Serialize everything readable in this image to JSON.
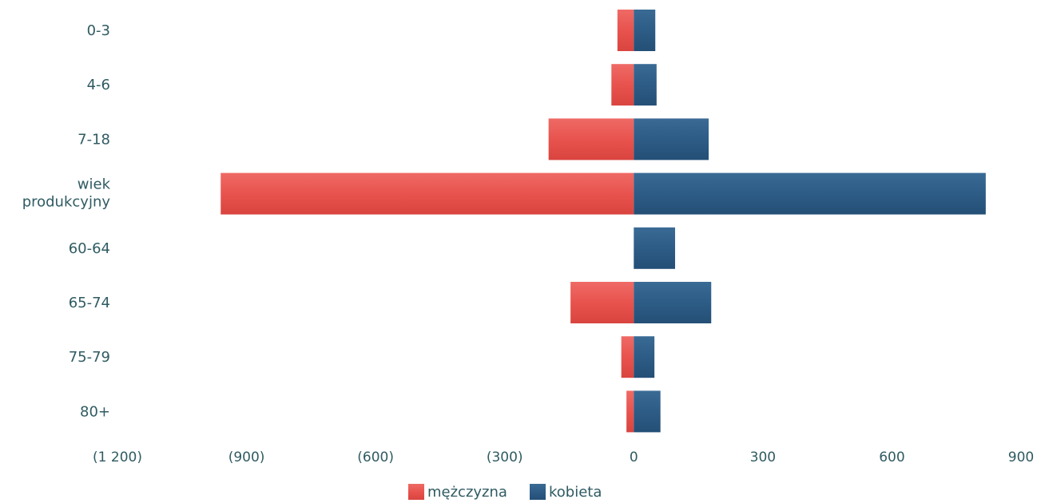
{
  "chart_data": {
    "type": "bar",
    "orientation": "horizontal",
    "stacking": "diverging",
    "categories": [
      "0-3",
      "4-6",
      "7-18",
      "wiek produkcyjny",
      "60-64",
      "65-74",
      "75-79",
      "80+"
    ],
    "series": [
      {
        "name": "mężczyzna",
        "color": "#e8534e",
        "values": [
          -38,
          -52,
          -198,
          -960,
          0,
          -147,
          -29,
          -17
        ]
      },
      {
        "name": "kobieta",
        "color": "#2d5c86",
        "values": [
          50,
          53,
          174,
          818,
          96,
          180,
          48,
          62
        ]
      }
    ],
    "xlim": [
      -1200,
      900
    ],
    "xticks": [
      -1200,
      -900,
      -600,
      -300,
      0,
      300,
      600,
      900
    ],
    "xtick_labels": [
      "(1 200)",
      "(900)",
      "(600)",
      "(300)",
      "0",
      "300",
      "600",
      "900"
    ],
    "legend_position": "bottom-center",
    "grid": false
  }
}
